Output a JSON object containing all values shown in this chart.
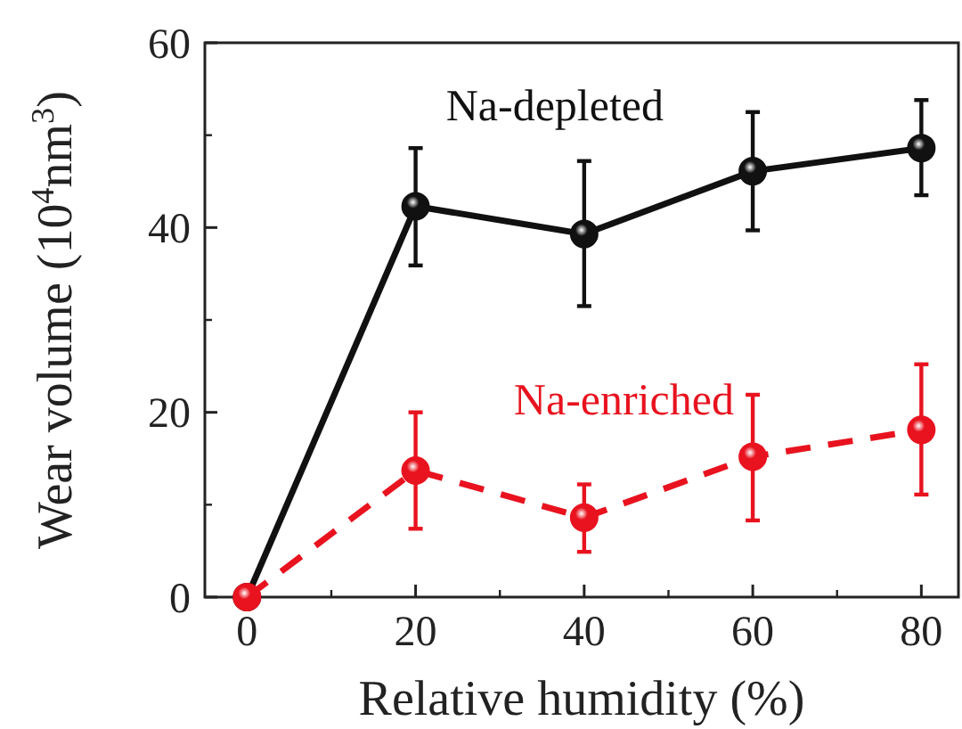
{
  "chart_data": {
    "type": "line",
    "xlabel": "Relative humidity (%)",
    "ylabel": "Wear volume (10$^{4}$nm$^{3}$)",
    "x": [
      0,
      20,
      40,
      60,
      80
    ],
    "xlim": [
      -5,
      84.4
    ],
    "xticks": [
      0,
      20,
      40,
      60,
      80
    ],
    "ylim": [
      0,
      60
    ],
    "yticks": [
      0,
      20,
      40,
      60
    ],
    "marker": "circle",
    "series": [
      {
        "name": "Na-depleted",
        "color": "#111111",
        "line_style": "solid",
        "values": [
          0,
          42.3,
          39.3,
          46.1,
          48.6
        ],
        "errors": [
          null,
          [
            35.9,
            48.6
          ],
          [
            31.5,
            47.2
          ],
          [
            39.7,
            52.5
          ],
          [
            43.5,
            53.8
          ]
        ]
      },
      {
        "name": "Na-enriched",
        "color": "#e8131f",
        "line_style": "dashed",
        "values": [
          0,
          13.7,
          8.6,
          15.2,
          18.1
        ],
        "errors": [
          null,
          [
            7.4,
            20.0
          ],
          [
            4.9,
            12.2
          ],
          [
            8.3,
            21.9
          ],
          [
            11.1,
            25.2
          ]
        ]
      }
    ]
  }
}
